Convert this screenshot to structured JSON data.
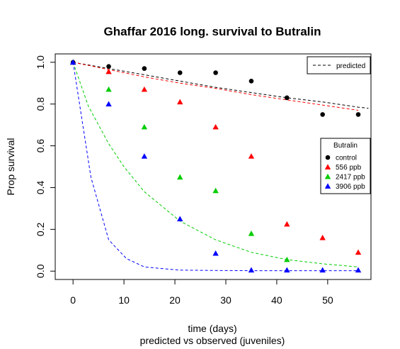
{
  "chart_data": {
    "type": "scatter",
    "title": "Ghaffar 2016 long. survival to Butralin",
    "xlabel": "time (days)",
    "xlabel_sub": "predicted vs observed (juveniles)",
    "ylabel": "Prop survival",
    "xlim": [
      -3.5,
      58.5
    ],
    "ylim": [
      -0.04,
      1.04
    ],
    "xticks": [
      0,
      10,
      20,
      30,
      40,
      50
    ],
    "yticks": [
      0.0,
      0.2,
      0.4,
      0.6,
      0.8,
      1.0
    ],
    "xtick_labels": [
      "0",
      "10",
      "20",
      "30",
      "40",
      "50"
    ],
    "ytick_labels": [
      "0.0",
      "0.2",
      "0.4",
      "0.6",
      "0.8",
      "1.0"
    ],
    "legend_top": {
      "label": "predicted",
      "placement": "top-right"
    },
    "legend_title": "Butralin",
    "legend_placement": "right",
    "series": [
      {
        "name": "control",
        "color": "#000000",
        "marker": "circle",
        "observed": {
          "x": [
            0,
            7,
            14,
            21,
            28,
            35,
            42,
            49,
            56
          ],
          "y": [
            1.0,
            0.98,
            0.97,
            0.95,
            0.95,
            0.91,
            0.83,
            0.75,
            0.75
          ]
        },
        "predicted": {
          "x": [
            0,
            7,
            14,
            21,
            28,
            35,
            42,
            49,
            56,
            58
          ],
          "y": [
            1.0,
            0.97,
            0.94,
            0.91,
            0.88,
            0.855,
            0.83,
            0.81,
            0.785,
            0.78
          ]
        }
      },
      {
        "name": "556 ppb",
        "color": "#ff0000",
        "marker": "triangle",
        "observed": {
          "x": [
            0,
            7,
            14,
            21,
            28,
            35,
            42,
            49,
            56
          ],
          "y": [
            1.0,
            0.955,
            0.87,
            0.81,
            0.69,
            0.55,
            0.225,
            0.16,
            0.09
          ]
        },
        "predicted": {
          "x": [
            0,
            7,
            14,
            21,
            28,
            35,
            42,
            49,
            56
          ],
          "y": [
            1.0,
            0.965,
            0.93,
            0.9,
            0.875,
            0.845,
            0.82,
            0.795,
            0.77
          ]
        }
      },
      {
        "name": "2417 ppb",
        "color": "#00cd00",
        "marker": "triangle",
        "observed": {
          "x": [
            0,
            7,
            14,
            21,
            28,
            35,
            42,
            49,
            56
          ],
          "y": [
            1.0,
            0.87,
            0.69,
            0.45,
            0.385,
            0.18,
            0.055,
            null,
            null
          ]
        },
        "predicted": {
          "x": [
            0,
            3,
            7,
            10,
            14,
            21,
            28,
            35,
            42,
            49,
            56
          ],
          "y": [
            1.0,
            0.79,
            0.61,
            0.5,
            0.38,
            0.24,
            0.15,
            0.09,
            0.055,
            0.035,
            0.02
          ]
        }
      },
      {
        "name": "3906 ppb",
        "color": "#0000ff",
        "marker": "triangle",
        "observed": {
          "x": [
            0,
            7,
            14,
            21,
            28,
            35,
            42,
            49,
            56
          ],
          "y": [
            1.0,
            0.8,
            0.55,
            0.25,
            0.085,
            0.005,
            0.005,
            0.005,
            0.005
          ]
        },
        "predicted": {
          "x": [
            0,
            3.5,
            7,
            10.5,
            14,
            21,
            28,
            35,
            42,
            49,
            56
          ],
          "y": [
            1.0,
            0.45,
            0.15,
            0.06,
            0.02,
            0.005,
            0.003,
            0.002,
            0.002,
            0.002,
            0.002
          ]
        }
      }
    ]
  }
}
